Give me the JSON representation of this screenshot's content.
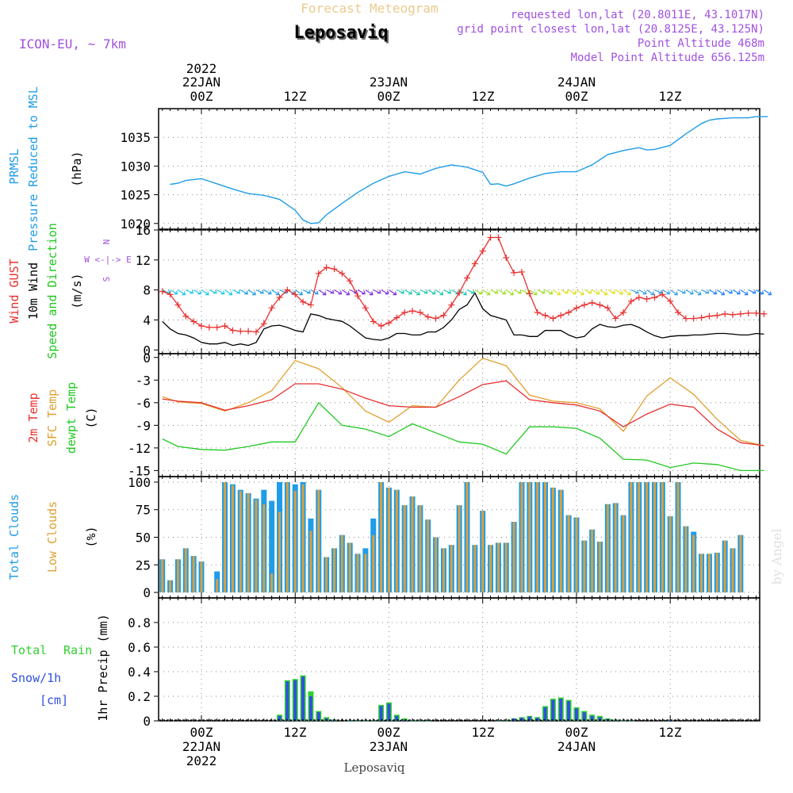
{
  "header": {
    "model": "ICON-EU, ~ 7km",
    "title_top": "Forecast Meteogram",
    "title_main": "Leposaviq",
    "requested": "requested lon,lat (20.8011E, 43.1017N)",
    "grid_point": "grid point closest lon,lat (20.8125E, 43.125N)",
    "point_alt": "Point Altitude 468m",
    "model_alt": "Model Point Altitude 656.125m"
  },
  "time_axis": {
    "top": {
      "year": "2022",
      "dates": [
        {
          "date": "22JAN",
          "hour": "00Z"
        },
        {
          "date": "",
          "hour": "12Z"
        },
        {
          "date": "23JAN",
          "hour": "00Z"
        },
        {
          "date": "",
          "hour": "12Z"
        },
        {
          "date": "24JAN",
          "hour": "00Z"
        },
        {
          "date": "",
          "hour": "12Z"
        }
      ]
    },
    "bottom": {
      "year": "2022",
      "dates": [
        {
          "date": "22JAN",
          "hour": "00Z"
        },
        {
          "date": "",
          "hour": "12Z"
        },
        {
          "date": "23JAN",
          "hour": "00Z"
        },
        {
          "date": "",
          "hour": "12Z"
        },
        {
          "date": "24JAN",
          "hour": "00Z"
        },
        {
          "date": "",
          "hour": "12Z"
        }
      ]
    },
    "footer_label": "Leposaviq"
  },
  "watermark": "by Angel",
  "colors": {
    "prmsl": "#1E9CE8",
    "gust": "#E83030",
    "wind": "#000000",
    "temp2m": "#E83030",
    "sfc": "#E0A030",
    "dewpt": "#20C820",
    "total_clouds": "#1E9CE8",
    "low_clouds": "#D8A040",
    "rain": "#30D030",
    "snow": "#3050E0",
    "purple": "#A050E0"
  },
  "panels": {
    "pressure": {
      "label1": "PRMSL",
      "label2": "Pressure Reduced to MSL",
      "unit": "(hPa)"
    },
    "wind": {
      "label_gust": "Wind GUST",
      "label_wind": "10m Wind",
      "label_dir": "Speed and Direction",
      "unit": "(m/s)",
      "compass_n": "N",
      "compass_ws": "W <-|-> E",
      "compass_s": "S"
    },
    "temp": {
      "label_2m": "2m Temp",
      "label_sfc": "SFC Temp",
      "label_dew": "dewpt Temp",
      "unit": "(C)"
    },
    "clouds": {
      "label_total": "Total Clouds",
      "label_low": "Low Clouds",
      "unit": "(%)"
    },
    "precip": {
      "label_total": "Total",
      "label_rain": "Rain",
      "label_snow": "Snow/1h",
      "label_cm": "[cm]",
      "label_axis": "1hr Precip (mm)"
    }
  },
  "chart_data": [
    {
      "type": "line",
      "title": "PRMSL Pressure Reduced to MSL",
      "ylabel": "(hPa)",
      "ylim": [
        1019,
        1040
      ],
      "yticks": [
        1020,
        1025,
        1030,
        1035
      ],
      "x_hours_from_22JAN00Z": [
        -4,
        -3,
        -2,
        0,
        2,
        4,
        6,
        8,
        10,
        12,
        13,
        14,
        15,
        16,
        18,
        20,
        22,
        24,
        26,
        28,
        30,
        32,
        34,
        36,
        37,
        38,
        39,
        40,
        42,
        44,
        46,
        48,
        50,
        52,
        54,
        56,
        57,
        58,
        60,
        62,
        64,
        65,
        66,
        68,
        70,
        71,
        72,
        72.5
      ],
      "series": [
        {
          "name": "PRMSL",
          "values": [
            1026.8,
            1027.0,
            1027.5,
            1027.8,
            1026.9,
            1026.0,
            1025.2,
            1024.9,
            1024.2,
            1022.3,
            1020.6,
            1020.0,
            1020.1,
            1021.5,
            1023.5,
            1025.4,
            1027.0,
            1028.2,
            1029.0,
            1028.6,
            1029.6,
            1030.2,
            1029.8,
            1028.9,
            1026.8,
            1026.9,
            1026.5,
            1026.9,
            1027.9,
            1028.7,
            1029.0,
            1029.0,
            1030.2,
            1032.0,
            1032.7,
            1033.2,
            1032.8,
            1032.9,
            1033.6,
            1035.6,
            1037.4,
            1038.0,
            1038.2,
            1038.4,
            1038.4,
            1038.6,
            1038.6,
            1038.6
          ]
        }
      ]
    },
    {
      "type": "line",
      "title": "Wind GUST / 10m Wind Speed and Direction",
      "ylabel": "(m/s)",
      "ylim": [
        -0.5,
        16
      ],
      "yticks": [
        0,
        4,
        8,
        12,
        16
      ],
      "x_hours_from_22JAN00Z": [
        -5,
        -4,
        -3,
        -2,
        -1,
        0,
        1,
        2,
        3,
        4,
        5,
        6,
        7,
        8,
        9,
        10,
        11,
        12,
        13,
        14,
        15,
        16,
        17,
        18,
        19,
        20,
        21,
        22,
        23,
        24,
        25,
        26,
        27,
        28,
        29,
        30,
        31,
        32,
        33,
        34,
        35,
        36,
        37,
        38,
        39,
        40,
        41,
        42,
        43,
        44,
        45,
        46,
        47,
        48,
        49,
        50,
        51,
        52,
        53,
        54,
        55,
        56,
        57,
        58,
        59,
        60,
        61,
        62,
        63,
        64,
        65,
        66,
        67,
        68,
        69,
        70,
        71,
        72
      ],
      "series": [
        {
          "name": "Wind GUST",
          "values": [
            7.8,
            7.4,
            6.0,
            4.5,
            3.8,
            3.2,
            3.0,
            3.0,
            3.2,
            2.6,
            2.5,
            2.5,
            2.4,
            3.5,
            5.6,
            7.0,
            8.0,
            7.4,
            6.4,
            6.0,
            10.2,
            11.0,
            10.8,
            10.2,
            9.2,
            7.2,
            5.6,
            3.8,
            3.2,
            3.6,
            4.3,
            5.0,
            5.2,
            5.0,
            4.4,
            4.2,
            4.6,
            6.0,
            7.6,
            9.6,
            11.5,
            13.2,
            15.0,
            15.0,
            12.3,
            10.3,
            10.4,
            7.5,
            5.0,
            4.6,
            4.2,
            4.6,
            5.0,
            5.6,
            6.0,
            6.3,
            6.0,
            5.6,
            4.2,
            5.0,
            6.5,
            7.0,
            6.8,
            7.0,
            7.4,
            6.5,
            5.0,
            4.2,
            4.2,
            4.3,
            4.5,
            4.6,
            4.8,
            4.7,
            4.8,
            4.9,
            4.9,
            4.8
          ]
        },
        {
          "name": "10m Wind",
          "values": [
            3.8,
            2.8,
            2.2,
            2.0,
            1.6,
            1.0,
            0.8,
            0.8,
            1.0,
            0.6,
            0.8,
            0.6,
            1.0,
            2.8,
            3.2,
            3.3,
            3.0,
            2.6,
            2.4,
            4.8,
            4.6,
            4.2,
            4.0,
            3.8,
            3.2,
            2.4,
            1.6,
            1.4,
            1.3,
            1.6,
            2.2,
            2.2,
            2.0,
            2.0,
            2.4,
            2.4,
            3.0,
            4.0,
            5.4,
            6.0,
            7.6,
            5.5,
            4.6,
            4.3,
            4.0,
            2.0,
            2.0,
            1.8,
            1.8,
            2.6,
            2.6,
            2.6,
            2.0,
            1.6,
            1.8,
            2.8,
            3.4,
            3.1,
            3.0,
            3.3,
            3.4,
            3.0,
            2.4,
            1.9,
            1.6,
            1.8,
            1.9,
            1.9,
            2.0,
            2.0,
            2.1,
            2.2,
            2.2,
            2.1,
            2.0,
            2.0,
            2.2,
            2.1
          ]
        }
      ]
    },
    {
      "type": "line",
      "title": "2m Temp / SFC Temp / dewpt Temp",
      "ylabel": "(C)",
      "ylim": [
        -15.8,
        0.5
      ],
      "yticks": [
        0,
        -3,
        -6,
        -9,
        -12,
        -15
      ],
      "x_hours_from_22JAN00Z": [
        -5,
        -3,
        0,
        3,
        6,
        9,
        12,
        15,
        18,
        21,
        24,
        27,
        30,
        33,
        36,
        39,
        42,
        45,
        48,
        51,
        54,
        57,
        60,
        63,
        66,
        69,
        72
      ],
      "series": [
        {
          "name": "2m Temp",
          "values": [
            -5.5,
            -5.8,
            -6.0,
            -7.0,
            -6.4,
            -5.6,
            -3.5,
            -3.5,
            -4.2,
            -5.4,
            -6.4,
            -6.6,
            -6.6,
            -5.2,
            -3.6,
            -3.1,
            -5.6,
            -6.0,
            -6.3,
            -7.1,
            -9.2,
            -7.5,
            -6.2,
            -6.6,
            -9.5,
            -11.3,
            -11.7
          ]
        },
        {
          "name": "SFC Temp",
          "values": [
            -5.2,
            -5.9,
            -6.1,
            -7.1,
            -6.0,
            -4.4,
            -0.4,
            -1.5,
            -4.0,
            -7.1,
            -8.6,
            -6.4,
            -6.6,
            -3.0,
            -0.1,
            -1.1,
            -5.0,
            -5.8,
            -6.0,
            -6.8,
            -9.8,
            -5.1,
            -2.7,
            -4.9,
            -8.2,
            -11.0,
            -11.7
          ]
        },
        {
          "name": "dewpt Temp",
          "values": [
            -10.8,
            -11.8,
            -12.2,
            -12.3,
            -11.8,
            -11.2,
            -11.2,
            -6.0,
            -9.0,
            -9.5,
            -10.5,
            -8.8,
            -10.0,
            -11.2,
            -11.5,
            -12.8,
            -9.2,
            -9.2,
            -9.4,
            -10.7,
            -13.5,
            -13.6,
            -14.6,
            -14.0,
            -14.2,
            -15.0,
            -15.0
          ]
        }
      ]
    },
    {
      "type": "bar",
      "title": "Total Clouds / Low Clouds",
      "ylabel": "(%)",
      "ylim": [
        -5,
        105
      ],
      "yticks": [
        0,
        25,
        50,
        75,
        100
      ],
      "x_hours_from_22JAN00Z": [
        -5,
        -4,
        -3,
        -2,
        -1,
        0,
        1,
        2,
        3,
        4,
        5,
        6,
        7,
        8,
        9,
        10,
        11,
        12,
        13,
        14,
        15,
        16,
        17,
        18,
        19,
        20,
        21,
        22,
        23,
        24,
        25,
        26,
        27,
        28,
        29,
        30,
        31,
        32,
        33,
        34,
        35,
        36,
        37,
        38,
        39,
        40,
        41,
        42,
        43,
        44,
        45,
        46,
        47,
        48,
        49,
        50,
        51,
        52,
        53,
        54,
        55,
        56,
        57,
        58,
        59,
        60,
        61,
        62,
        63,
        64,
        65,
        66,
        67,
        68,
        69,
        70,
        71,
        72
      ],
      "series": [
        {
          "name": "Total Clouds",
          "values": [
            30,
            11,
            30,
            40,
            33,
            28,
            0,
            19,
            100,
            98,
            93,
            90,
            85,
            93,
            83,
            100,
            100,
            98,
            100,
            67,
            93,
            32,
            40,
            52,
            45,
            35,
            40,
            67,
            100,
            95,
            93,
            79,
            87,
            79,
            66,
            50,
            40,
            43,
            79,
            100,
            43,
            74,
            43,
            45,
            45,
            64,
            100,
            100,
            100,
            100,
            95,
            93,
            70,
            68,
            47,
            57,
            46,
            80,
            81,
            70,
            100,
            100,
            100,
            100,
            100,
            69,
            100,
            60,
            55,
            35,
            35,
            36,
            47,
            40,
            52
          ]
        },
        {
          "name": "Low Clouds",
          "values": [
            30,
            11,
            30,
            40,
            33,
            28,
            0,
            12,
            100,
            97,
            92,
            90,
            84,
            80,
            17,
            73,
            100,
            92,
            98,
            56,
            93,
            32,
            40,
            52,
            45,
            35,
            35,
            52,
            100,
            95,
            93,
            79,
            87,
            79,
            66,
            50,
            40,
            43,
            79,
            100,
            43,
            74,
            43,
            45,
            45,
            64,
            100,
            100,
            100,
            100,
            95,
            93,
            70,
            68,
            47,
            57,
            46,
            80,
            81,
            70,
            100,
            100,
            100,
            100,
            100,
            69,
            100,
            60,
            52,
            35,
            35,
            36,
            47,
            40,
            52
          ]
        }
      ]
    },
    {
      "type": "bar",
      "title": "1hr Precip (mm): Total / Rain / Snow/1h [cm]",
      "ylabel": "1hr Precip (mm)",
      "ylim": [
        0,
        1.0
      ],
      "yticks": [
        0,
        0.2,
        0.4,
        0.6,
        0.8
      ],
      "x_hours_from_22JAN00Z": [
        10,
        11,
        12,
        13,
        14,
        15,
        16,
        17,
        19,
        20,
        21,
        22,
        23,
        24,
        25,
        26,
        27,
        28,
        29,
        38,
        39,
        40,
        41,
        42,
        43,
        44,
        45,
        46,
        47,
        48,
        49,
        50,
        51,
        52,
        53,
        54,
        55,
        60
      ],
      "series": [
        {
          "name": "Total",
          "values": [
            0.05,
            0.33,
            0.34,
            0.37,
            0.24,
            0.08,
            0.03,
            0.01,
            0.003,
            0.002,
            0.002,
            0.003,
            0.13,
            0.15,
            0.05,
            0.02,
            0.003,
            0.002,
            0.001,
            0.002,
            0.003,
            0.02,
            0.03,
            0.04,
            0.03,
            0.12,
            0.18,
            0.19,
            0.17,
            0.11,
            0.08,
            0.05,
            0.04,
            0.02,
            0.01,
            0.003,
            0.002,
            0.01
          ]
        },
        {
          "name": "Rain",
          "values": [
            0.0,
            0.0,
            0.0,
            0.0,
            0.0,
            0.0,
            0.0,
            0.0,
            0.0,
            0.0,
            0.0,
            0.0,
            0.0,
            0.0,
            0.0,
            0.0,
            0.0,
            0.0,
            0.0,
            0.0,
            0.0,
            0.0,
            0.0,
            0.0,
            0.0,
            0.0,
            0.0,
            0.0,
            0.0,
            0.0,
            0.0,
            0.0,
            0.0,
            0.0,
            0.0,
            0.0,
            0.0,
            0.0
          ]
        },
        {
          "name": "Snow/1h",
          "values": [
            0.04,
            0.32,
            0.33,
            0.36,
            0.2,
            0.07,
            0.02,
            0.01,
            0.002,
            0.001,
            0.001,
            0.002,
            0.12,
            0.14,
            0.04,
            0.01,
            0.002,
            0.001,
            0.001,
            0.001,
            0.002,
            0.02,
            0.025,
            0.035,
            0.025,
            0.11,
            0.17,
            0.18,
            0.16,
            0.1,
            0.07,
            0.04,
            0.03,
            0.015,
            0.008,
            0.002,
            0.001,
            0.008
          ]
        }
      ]
    }
  ]
}
